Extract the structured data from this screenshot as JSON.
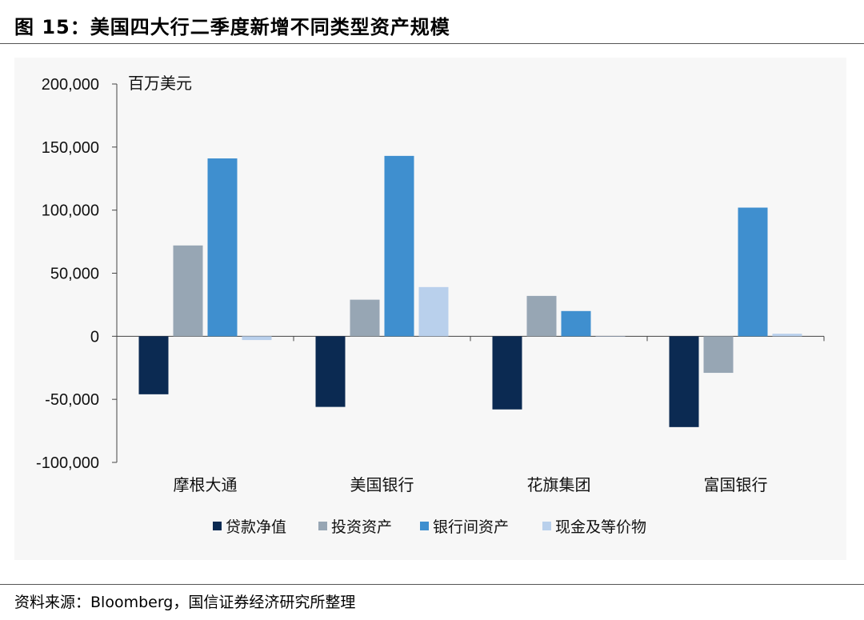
{
  "header": {
    "title": "图 15：美国四大行二季度新增不同类型资产规模"
  },
  "footer": {
    "source": "资料来源：Bloomberg，国信证券经济研究所整理"
  },
  "chart_data": {
    "type": "bar",
    "unit_label": "百万美元",
    "categories": [
      "摩根大通",
      "美国银行",
      "花旗集团",
      "富国银行"
    ],
    "series": [
      {
        "name": "贷款净值",
        "color": "#0b2a52",
        "values": [
          -46000,
          -56000,
          -58000,
          -72000
        ]
      },
      {
        "name": "投资资产",
        "color": "#97a6b4",
        "values": [
          72000,
          29000,
          32000,
          -29000
        ]
      },
      {
        "name": "银行间资产",
        "color": "#3f8fcf",
        "values": [
          141000,
          143000,
          20000,
          102000
        ]
      },
      {
        "name": "现金及等价物",
        "color": "#b9d0ec",
        "values": [
          -3000,
          39000,
          0,
          2000
        ]
      }
    ],
    "ylim": [
      -100000,
      200000
    ],
    "yticks": [
      "200,000",
      "150,000",
      "100,000",
      "50,000",
      "0",
      "-50,000",
      "-100,000"
    ],
    "ytick_values": [
      200000,
      150000,
      100000,
      50000,
      0,
      -50000,
      -100000
    ],
    "legend_position": "bottom",
    "grid": false
  }
}
